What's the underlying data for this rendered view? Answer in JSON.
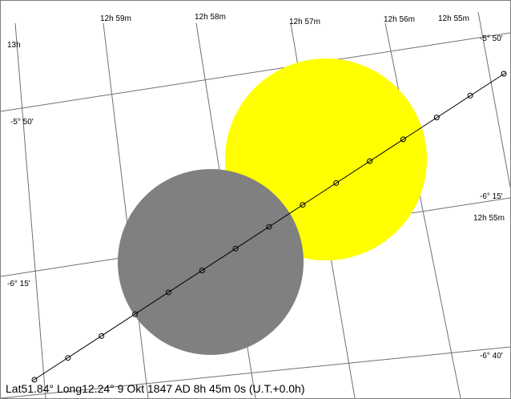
{
  "colors": {
    "background": "#ffffff",
    "grid": "#707070",
    "sun": "#ffff00",
    "moon": "#808080",
    "path": "#000000"
  },
  "sky": {
    "ra_labels_top": [
      "12h 59m",
      "12h 58m",
      "12h 57m",
      "12h 56m",
      "12h 55m"
    ],
    "ra_label_left": "13h",
    "ra_label_right": "12h 55m",
    "dec_labels_left": [
      "-5° 50'",
      "-6° 15'"
    ],
    "dec_labels_right": [
      "-5° 50'",
      "-6° 15'",
      "-6° 40'"
    ]
  },
  "bodies": {
    "sun_name": "sun",
    "moon_name": "moon"
  },
  "moon_path_points": 15,
  "status": {
    "text": "Lat51.84° Long12.24°  9 Okt 1847 AD 8h 45m 0s (U.T.+0.0h)"
  }
}
